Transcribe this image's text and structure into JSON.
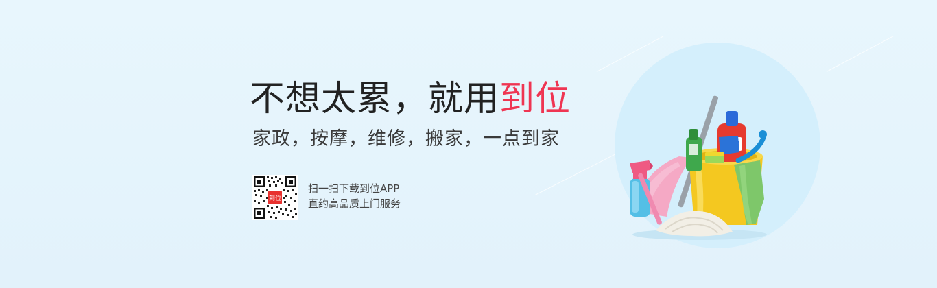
{
  "banner": {
    "headline_part1": "不想太累，就用",
    "headline_accent": "到位",
    "subline": "家政，按摩，维修，搬家，一点到家",
    "qr_badge": "到位",
    "qr_line1": "扫一扫下载到位APP",
    "qr_line2": "直约高品质上门服务",
    "accent_color": "#ef3552",
    "text_color": "#222222",
    "icons": [
      "qr-code-icon",
      "cleaning-bucket-icon"
    ]
  }
}
